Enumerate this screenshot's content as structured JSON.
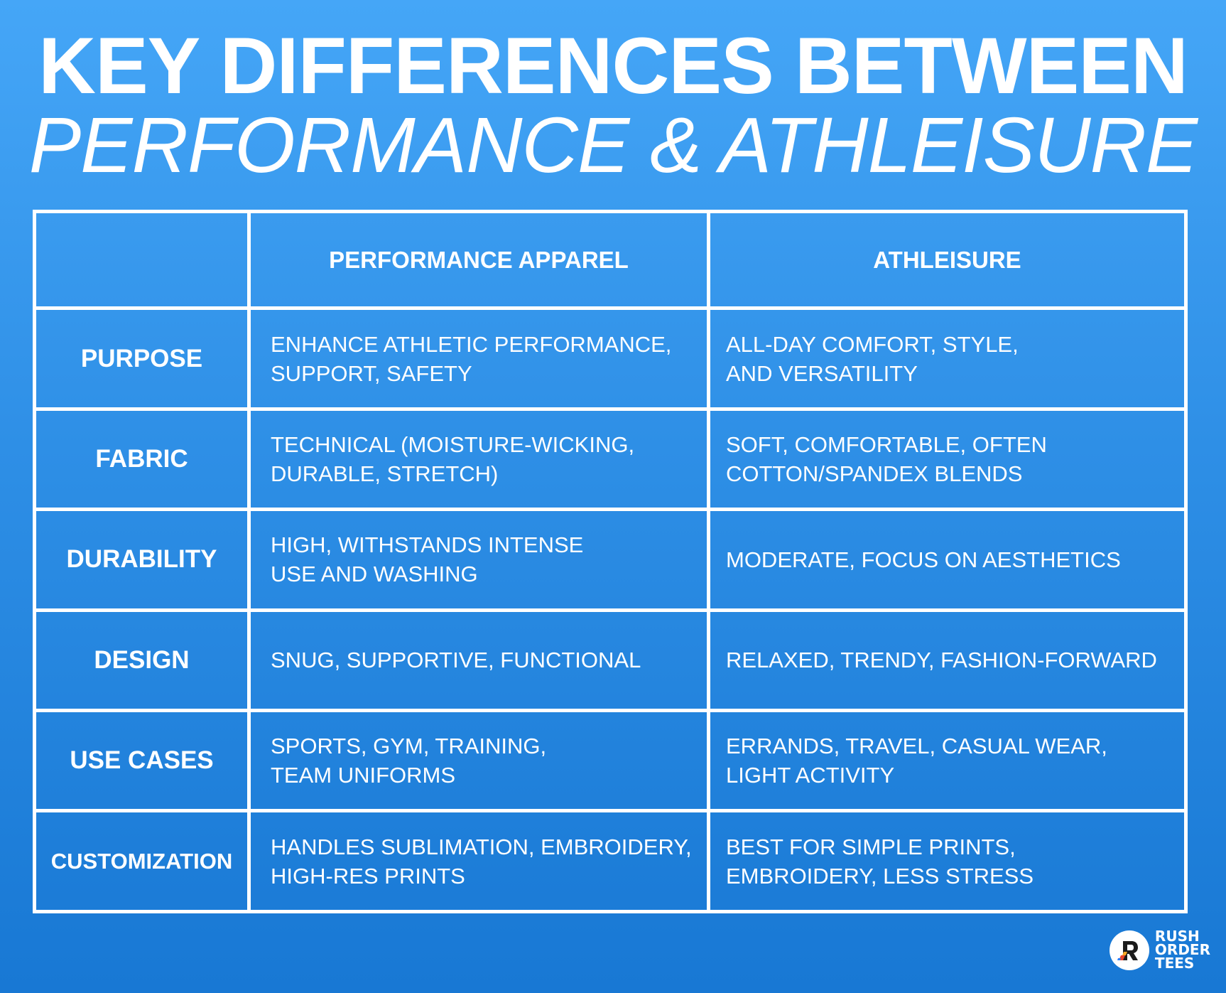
{
  "title": {
    "line1": "KEY DIFFERENCES BETWEEN",
    "line2": "PERFORMANCE & ATHLEISURE"
  },
  "table": {
    "headers": [
      "",
      "PERFORMANCE APPAREL",
      "ATHLEISURE"
    ],
    "rows": [
      {
        "label": "PURPOSE",
        "performance": "ENHANCE ATHLETIC PERFORMANCE,\nSUPPORT, SAFETY",
        "athleisure": "ALL-DAY COMFORT, STYLE,\nAND VERSATILITY"
      },
      {
        "label": "FABRIC",
        "performance": "TECHNICAL (MOISTURE-WICKING,\nDURABLE, STRETCH)",
        "athleisure": "SOFT, COMFORTABLE, OFTEN\nCOTTON/SPANDEX BLENDS"
      },
      {
        "label": "DURABILITY",
        "performance": "HIGH, WITHSTANDS INTENSE\nUSE AND WASHING",
        "athleisure": "MODERATE, FOCUS ON AESTHETICS"
      },
      {
        "label": "DESIGN",
        "performance": "SNUG, SUPPORTIVE, FUNCTIONAL",
        "athleisure": "RELAXED, TRENDY, FASHION-FORWARD"
      },
      {
        "label": "USE CASES",
        "performance": "SPORTS, GYM, TRAINING,\nTEAM UNIFORMS",
        "athleisure": "ERRANDS, TRAVEL, CASUAL WEAR,\nLIGHT ACTIVITY"
      },
      {
        "label": "CUSTOMIZATION",
        "performance": "HANDLES SUBLIMATION, EMBROIDERY,\nHIGH-RES PRINTS",
        "athleisure": "BEST FOR SIMPLE PRINTS,\nEMBROIDERY, LESS STRESS"
      }
    ]
  },
  "logo": {
    "icon": "rush-order-tees-logo-icon",
    "text": "RUSH\nORDER\nTEES"
  },
  "colors": {
    "background_top": "#45a6f7",
    "background_bottom": "#1878d4",
    "text": "#ffffff",
    "border": "#ffffff"
  }
}
